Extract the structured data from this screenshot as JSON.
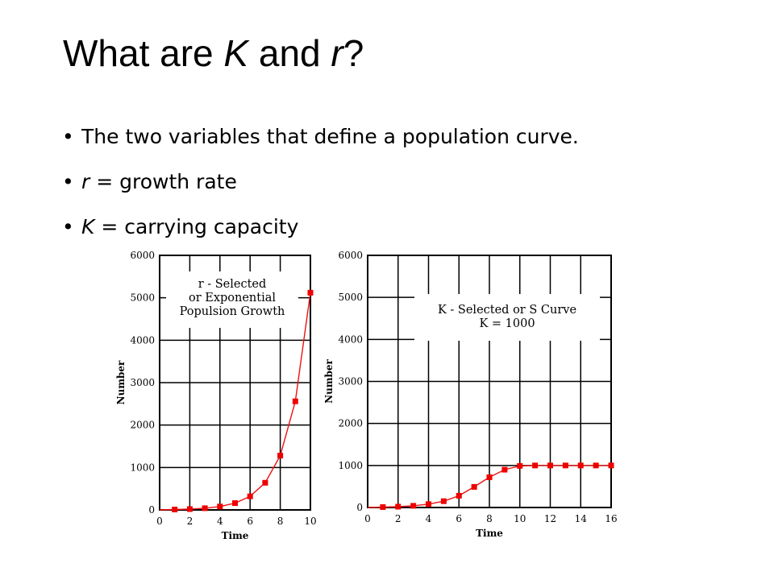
{
  "slide": {
    "title_part1": "What are ",
    "title_k": "K",
    "title_and": " and ",
    "title_r": "r",
    "title_end": "?",
    "bullets": [
      {
        "text": "The two variables that define a population curve."
      },
      {
        "var": "r",
        "rest": " = growth rate"
      },
      {
        "var": "K",
        "rest": " = carrying capacity"
      }
    ]
  },
  "colors": {
    "series": "#ee1111",
    "marker": "#ee0000",
    "grid": "#000000"
  },
  "chart_data": [
    {
      "type": "line",
      "xlabel": "Time",
      "ylabel": "Number",
      "xlim": [
        0,
        10
      ],
      "ylim": [
        0,
        6000
      ],
      "x_ticks": [
        0,
        2,
        4,
        6,
        8,
        10
      ],
      "y_ticks": [
        0,
        1000,
        2000,
        3000,
        4000,
        5000,
        6000
      ],
      "grid": true,
      "annotation": [
        "r - Selected",
        "or Exponential",
        "Populsion Growth"
      ],
      "series": [
        {
          "x": [
            1,
            2,
            3,
            4,
            5,
            6,
            7,
            8,
            9,
            10
          ],
          "y": [
            10,
            20,
            40,
            80,
            160,
            320,
            640,
            1280,
            2560,
            5120
          ]
        }
      ]
    },
    {
      "type": "line",
      "xlabel": "Time",
      "ylabel": "Number",
      "xlim": [
        0,
        16
      ],
      "ylim": [
        0,
        6000
      ],
      "x_ticks": [
        0,
        2,
        4,
        6,
        8,
        10,
        12,
        14,
        16
      ],
      "y_ticks": [
        0,
        1000,
        2000,
        3000,
        4000,
        5000,
        6000
      ],
      "grid": true,
      "annotation": [
        "K - Selected or S Curve",
        "K = 1000"
      ],
      "series": [
        {
          "x": [
            1,
            2,
            3,
            4,
            5,
            6,
            7,
            8,
            9,
            10,
            11,
            12,
            13,
            14,
            15,
            16
          ],
          "y": [
            10,
            20,
            40,
            80,
            150,
            280,
            490,
            720,
            900,
            990,
            1000,
            1000,
            1000,
            1000,
            1000,
            1000
          ]
        }
      ]
    }
  ]
}
